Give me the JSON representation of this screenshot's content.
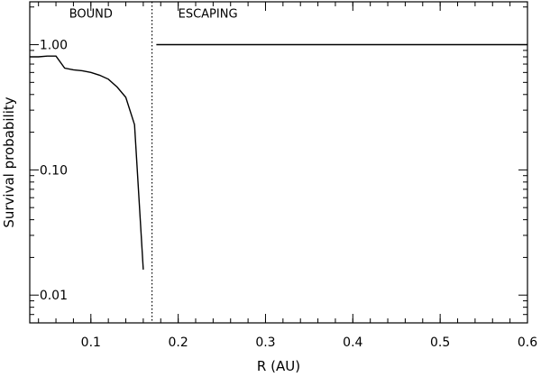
{
  "chart_data": {
    "type": "line",
    "xlabel": "R (AU)",
    "ylabel": "Survival probability",
    "xlim": [
      0.03,
      0.6
    ],
    "ylim": [
      0.006,
      2.2
    ],
    "yscale": "log",
    "x_ticks": [
      {
        "value": 0.1,
        "label": "0.1"
      },
      {
        "value": 0.2,
        "label": "0.2"
      },
      {
        "value": 0.3,
        "label": "0.3"
      },
      {
        "value": 0.4,
        "label": "0.4"
      },
      {
        "value": 0.5,
        "label": "0.5"
      },
      {
        "value": 0.6,
        "label": "0.6"
      }
    ],
    "x_minor_step": 0.02,
    "y_ticks": [
      {
        "value": 0.01,
        "label": "0.01"
      },
      {
        "value": 0.1,
        "label": "0.10"
      },
      {
        "value": 1.0,
        "label": "1.00"
      }
    ],
    "grid": false,
    "boundary": {
      "x": 0.17,
      "style": "dotted"
    },
    "region_labels": [
      {
        "text": "BOUND",
        "x": 0.1,
        "y": 1.65
      },
      {
        "text": "ESCAPING",
        "x": 0.2,
        "y": 1.65
      }
    ],
    "series": [
      {
        "values": [
          [
            0.03,
            0.8
          ],
          [
            0.04,
            0.8
          ],
          [
            0.05,
            0.81
          ],
          [
            0.06,
            0.81
          ],
          [
            0.07,
            0.65
          ],
          [
            0.08,
            0.63
          ],
          [
            0.09,
            0.62
          ],
          [
            0.1,
            0.6
          ],
          [
            0.11,
            0.57
          ],
          [
            0.12,
            0.53
          ],
          [
            0.13,
            0.46
          ],
          [
            0.14,
            0.38
          ],
          [
            0.15,
            0.23
          ],
          [
            0.16,
            0.016
          ]
        ]
      },
      {
        "values": [
          [
            0.175,
            1.0
          ],
          [
            0.6,
            1.0
          ]
        ]
      }
    ]
  }
}
